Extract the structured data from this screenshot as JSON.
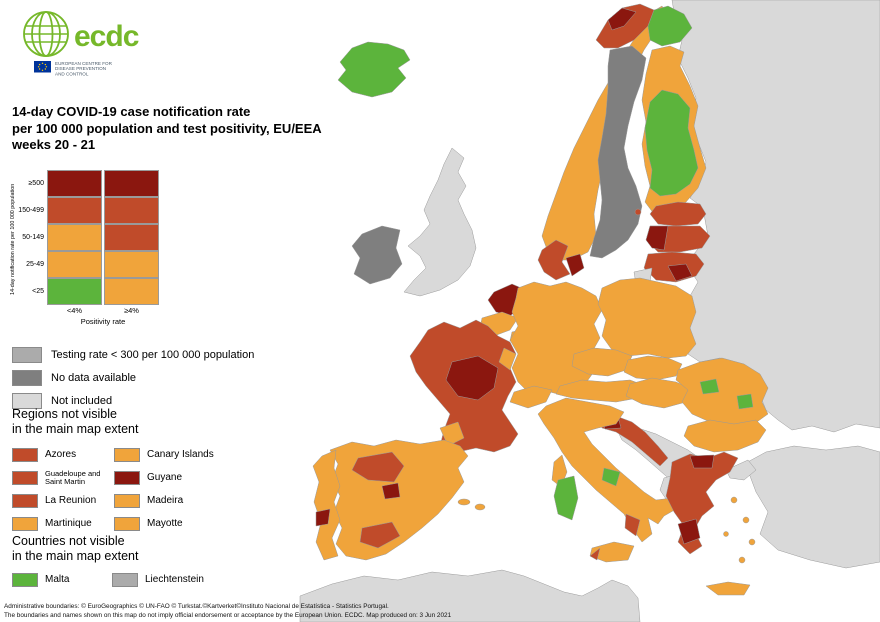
{
  "logo": {
    "brand": "ecdc",
    "subtext_lines": [
      "EUROPEAN CENTRE FOR",
      "DISEASE PREVENTION",
      "AND CONTROL"
    ]
  },
  "title": {
    "line1": "14-day COVID-19 case notification rate",
    "line2": "per 100 000 population and test positivity, EU/EEA",
    "line3": "weeks 20 - 21"
  },
  "legend_matrix": {
    "y_axis_label": "14-day notification rate per 100 000 population",
    "x_axis_label": "Positivity rate",
    "col_labels": [
      "<4%",
      "≥4%"
    ],
    "rows": [
      {
        "label": "≥500",
        "cells": [
          "darkred",
          "darkred"
        ]
      },
      {
        "label": "150-499",
        "cells": [
          "red",
          "red"
        ]
      },
      {
        "label": "50-149",
        "cells": [
          "orange",
          "red"
        ]
      },
      {
        "label": "25-49",
        "cells": [
          "orange",
          "orange"
        ]
      },
      {
        "label": "<25",
        "cells": [
          "green",
          "orange"
        ]
      }
    ]
  },
  "legend_items": [
    {
      "color": "mediumgray",
      "label": "Testing rate < 300 per 100 000 population"
    },
    {
      "color": "darkgray",
      "label": "No data available"
    },
    {
      "color": "lightgray",
      "label": "Not included"
    }
  ],
  "regions_section": {
    "heading_line1": "Regions not visible",
    "heading_line2": "in the main map extent",
    "items_left": [
      {
        "color": "red",
        "label": "Azores"
      },
      {
        "color": "red",
        "label": "Guadeloupe and Saint Martin"
      },
      {
        "color": "red",
        "label": "La Reunion"
      },
      {
        "color": "orange",
        "label": "Martinique"
      }
    ],
    "items_right": [
      {
        "color": "orange",
        "label": "Canary Islands"
      },
      {
        "color": "darkred",
        "label": "Guyane"
      },
      {
        "color": "orange",
        "label": "Madeira"
      },
      {
        "color": "orange",
        "label": "Mayotte"
      }
    ]
  },
  "countries_section": {
    "heading_line1": "Countries not visible",
    "heading_line2": "in the main map extent",
    "items": [
      {
        "color": "green",
        "label": "Malta"
      },
      {
        "color": "mediumgray",
        "label": "Liechtenstein"
      }
    ]
  },
  "footer": {
    "line1": "Administrative boundaries: © EuroGeographics © UN-FAO © Turkstat.©Kartverket©Instituto Nacional de Estatística - Statistics Portugal.",
    "line2": "The boundaries and names shown on this map do not imply official endorsement or acceptance by the European Union. ECDC. Map produced on: 3 Jun 2021"
  },
  "palette": {
    "green": "#5cb43c",
    "orange": "#f0a43b",
    "red": "#c04b2a",
    "darkred": "#8b170f",
    "lightgray": "#d9d9d9",
    "mediumgray": "#ababab",
    "darkgray": "#7f7f7f",
    "logo_green": "#76b82a",
    "eu_blue": "#003399"
  },
  "map": {
    "regions": {
      "eastern-europe": "lightgray",
      "turkey": "lightgray",
      "north-africa": "lightgray",
      "uk": "lightgray",
      "kaliningrad": "lightgray",
      "west-balkans": "lightgray",
      "albania-macedonia": "lightgray",
      "ireland": "darkgray",
      "sweden": "darkgray",
      "iceland": "green",
      "norway": "orange",
      "norway-cap": "red",
      "norway-cap-dark": "darkred",
      "lapland-green": "green",
      "finland": "orange",
      "finland-inner": "green",
      "aland": "red",
      "estonia": "red",
      "latvia": "red",
      "latvia-west": "darkred",
      "lithuania": "red",
      "lithuania-south": "darkred",
      "denmark": "red",
      "denmark-east": "darkred",
      "netherlands": "darkred",
      "belgium": "orange",
      "luxembourg": "orange",
      "germany": "orange",
      "poland": "orange",
      "czechia": "orange",
      "slovakia": "orange",
      "austria": "orange",
      "switzerland": "orange",
      "france": "red",
      "france-center": "darkred",
      "france-east": "orange",
      "france-southwest": "orange",
      "corsica": "orange",
      "spain": "orange",
      "spain-north": "red",
      "spain-madrid": "darkred",
      "spain-south": "red",
      "balearics-1": "orange",
      "balearics-2": "orange",
      "portugal": "orange",
      "portugal-lisbon": "darkred",
      "italy": "orange",
      "italy-green": "green",
      "italy-south": "red",
      "sardinia": "green",
      "sicily": "orange",
      "sicily-west": "red",
      "slovenia": "orange",
      "croatia": "red",
      "croatia-north": "darkred",
      "hungary": "orange",
      "romania": "orange",
      "romania-green-1": "green",
      "romania-green-2": "green",
      "bulgaria": "orange",
      "greece": "red",
      "greece-north": "darkred",
      "greece-south": "darkred",
      "island-1": "orange",
      "island-2": "orange",
      "island-3": "orange",
      "island-4": "orange",
      "island-5": "orange",
      "crete": "orange"
    }
  }
}
